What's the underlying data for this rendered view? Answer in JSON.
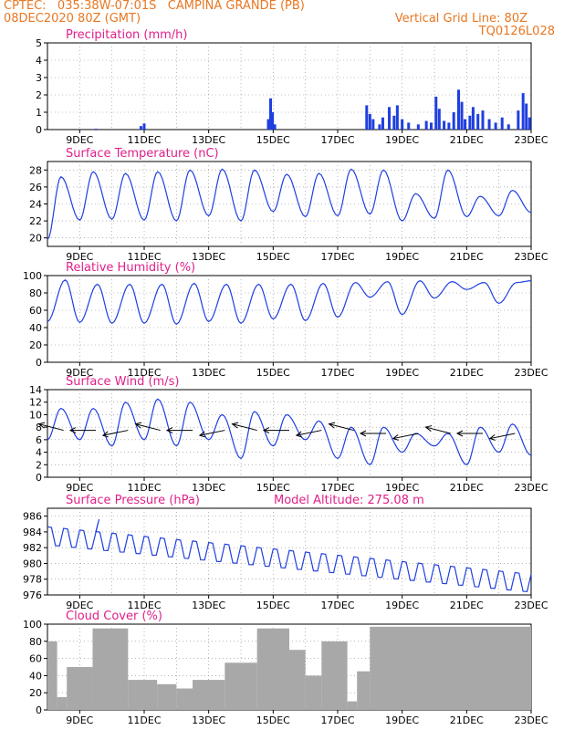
{
  "header": {
    "line1": "CPTEC:   035:38W-07:01S   CAMPINA GRANDE (PB)",
    "line2_left": "08DEC2020 80Z (GMT)",
    "line2_right": "Vertical Grid Line: 80Z",
    "line3_right": "TQ0126L028"
  },
  "colors": {
    "header": "#e87722",
    "title": "#e0208a",
    "series": "#1f3fe0",
    "cloud": "#a8a8a8",
    "arrow": "#000000"
  },
  "chart_data": [
    {
      "type": "bar",
      "title": "Precipitation (mm/h)",
      "x_ticks": [
        "9DEC",
        "11DEC",
        "13DEC",
        "15DEC",
        "17DEC",
        "19DEC",
        "21DEC",
        "23DEC"
      ],
      "ylim": [
        0,
        5
      ],
      "y_ticks": [
        0,
        1,
        2,
        3,
        4,
        5
      ],
      "bars": [
        {
          "day": 9.5,
          "value": 0.05
        },
        {
          "day": 10.9,
          "value": 0.2
        },
        {
          "day": 11.0,
          "value": 0.35
        },
        {
          "day": 14.85,
          "value": 0.6
        },
        {
          "day": 14.92,
          "value": 1.8
        },
        {
          "day": 14.98,
          "value": 1.0
        },
        {
          "day": 15.05,
          "value": 0.3
        },
        {
          "day": 17.9,
          "value": 1.4
        },
        {
          "day": 18.0,
          "value": 0.9
        },
        {
          "day": 18.1,
          "value": 0.6
        },
        {
          "day": 18.3,
          "value": 0.3
        },
        {
          "day": 18.4,
          "value": 0.7
        },
        {
          "day": 18.6,
          "value": 1.3
        },
        {
          "day": 18.75,
          "value": 0.8
        },
        {
          "day": 18.85,
          "value": 1.4
        },
        {
          "day": 19.0,
          "value": 0.6
        },
        {
          "day": 19.2,
          "value": 0.4
        },
        {
          "day": 19.5,
          "value": 0.3
        },
        {
          "day": 19.75,
          "value": 0.5
        },
        {
          "day": 19.9,
          "value": 0.4
        },
        {
          "day": 20.05,
          "value": 1.9
        },
        {
          "day": 20.15,
          "value": 1.2
        },
        {
          "day": 20.3,
          "value": 0.5
        },
        {
          "day": 20.45,
          "value": 0.4
        },
        {
          "day": 20.6,
          "value": 1.0
        },
        {
          "day": 20.75,
          "value": 2.3
        },
        {
          "day": 20.85,
          "value": 1.6
        },
        {
          "day": 20.95,
          "value": 0.6
        },
        {
          "day": 21.1,
          "value": 0.8
        },
        {
          "day": 21.2,
          "value": 1.3
        },
        {
          "day": 21.35,
          "value": 0.9
        },
        {
          "day": 21.5,
          "value": 1.1
        },
        {
          "day": 21.7,
          "value": 0.6
        },
        {
          "day": 21.9,
          "value": 0.4
        },
        {
          "day": 22.1,
          "value": 0.7
        },
        {
          "day": 22.3,
          "value": 0.3
        },
        {
          "day": 22.6,
          "value": 1.1
        },
        {
          "day": 22.75,
          "value": 2.1
        },
        {
          "day": 22.85,
          "value": 1.5
        },
        {
          "day": 22.95,
          "value": 0.7
        }
      ]
    },
    {
      "type": "line",
      "title": "Surface Temperature (nC)",
      "x_ticks": [
        "9DEC",
        "11DEC",
        "13DEC",
        "15DEC",
        "17DEC",
        "19DEC",
        "21DEC",
        "23DEC"
      ],
      "ylim": [
        19,
        29
      ],
      "y_ticks": [
        20,
        22,
        24,
        26,
        28
      ],
      "daily_max": [
        27.2,
        27.8,
        27.6,
        27.8,
        28.0,
        28.1,
        28.0,
        27.5,
        27.6,
        28.1,
        28.0,
        25.2,
        28.0,
        24.9,
        25.6
      ],
      "daily_min": [
        19.8,
        22.1,
        22.2,
        22.1,
        22.0,
        22.6,
        22.0,
        23.1,
        22.5,
        22.6,
        22.8,
        22.0,
        22.3,
        22.5,
        22.6
      ],
      "end_value": 23.0
    },
    {
      "type": "line",
      "title": "Relative Humidity (%)",
      "x_ticks": [
        "9DEC",
        "11DEC",
        "13DEC",
        "15DEC",
        "17DEC",
        "19DEC",
        "21DEC",
        "23DEC"
      ],
      "ylim": [
        0,
        100
      ],
      "y_ticks": [
        0,
        20,
        40,
        60,
        80,
        100
      ],
      "daily_max": [
        95,
        90,
        90,
        90,
        91,
        90,
        90,
        90,
        91,
        92,
        93,
        94,
        93,
        92,
        92
      ],
      "daily_min": [
        47,
        46,
        45,
        45,
        44,
        47,
        45,
        50,
        48,
        52,
        75,
        55,
        74,
        84,
        68
      ],
      "end_value": 94
    },
    {
      "type": "line",
      "title": "Surface Wind (m/s)",
      "x_ticks": [
        "9DEC",
        "11DEC",
        "13DEC",
        "15DEC",
        "17DEC",
        "19DEC",
        "21DEC",
        "23DEC"
      ],
      "ylim": [
        0,
        14
      ],
      "y_ticks": [
        0,
        2,
        4,
        6,
        8,
        10,
        12,
        14
      ],
      "daily_max": [
        11,
        11,
        12,
        12.5,
        12,
        10,
        10.5,
        10,
        9,
        8,
        8,
        7,
        7,
        8,
        8.5
      ],
      "daily_min": [
        6,
        6,
        5,
        6,
        5,
        6,
        3,
        5,
        6,
        3,
        2,
        4,
        5,
        2,
        4
      ],
      "end_value": 3.5,
      "wind_vectors_per_day": 1
    },
    {
      "type": "line",
      "title": "Surface Pressure (hPa)",
      "annotation": "Model Altitude: 275.08 m",
      "x_ticks": [
        "9DEC",
        "11DEC",
        "13DEC",
        "15DEC",
        "17DEC",
        "19DEC",
        "21DEC",
        "23DEC"
      ],
      "ylim": [
        976,
        987
      ],
      "y_ticks": [
        976,
        978,
        980,
        982,
        984,
        986
      ],
      "trend_start": 983.5,
      "trend_end": 977.5,
      "amplitude": 1.6,
      "peak_value": 985.6
    },
    {
      "type": "bar",
      "title": "Cloud Cover (%)",
      "x_ticks": [
        "9DEC",
        "11DEC",
        "13DEC",
        "15DEC",
        "17DEC",
        "19DEC",
        "21DEC",
        "23DEC"
      ],
      "ylim": [
        0,
        100
      ],
      "y_ticks": [
        0,
        20,
        40,
        60,
        80,
        100
      ],
      "segments": [
        {
          "from": 8.0,
          "to": 8.3,
          "value": 80
        },
        {
          "from": 8.3,
          "to": 8.6,
          "value": 15
        },
        {
          "from": 8.6,
          "to": 9.4,
          "value": 50
        },
        {
          "from": 9.4,
          "to": 10.5,
          "value": 95
        },
        {
          "from": 10.5,
          "to": 11.4,
          "value": 35
        },
        {
          "from": 11.4,
          "to": 12.0,
          "value": 30
        },
        {
          "from": 12.0,
          "to": 12.5,
          "value": 25
        },
        {
          "from": 12.5,
          "to": 13.5,
          "value": 35
        },
        {
          "from": 13.5,
          "to": 14.5,
          "value": 55
        },
        {
          "from": 14.5,
          "to": 15.5,
          "value": 95
        },
        {
          "from": 15.5,
          "to": 16.0,
          "value": 70
        },
        {
          "from": 16.0,
          "to": 16.5,
          "value": 40
        },
        {
          "from": 16.5,
          "to": 17.3,
          "value": 80
        },
        {
          "from": 17.3,
          "to": 17.6,
          "value": 10
        },
        {
          "from": 17.6,
          "to": 18.0,
          "value": 45
        },
        {
          "from": 18.0,
          "to": 23.0,
          "value": 97
        }
      ]
    }
  ]
}
